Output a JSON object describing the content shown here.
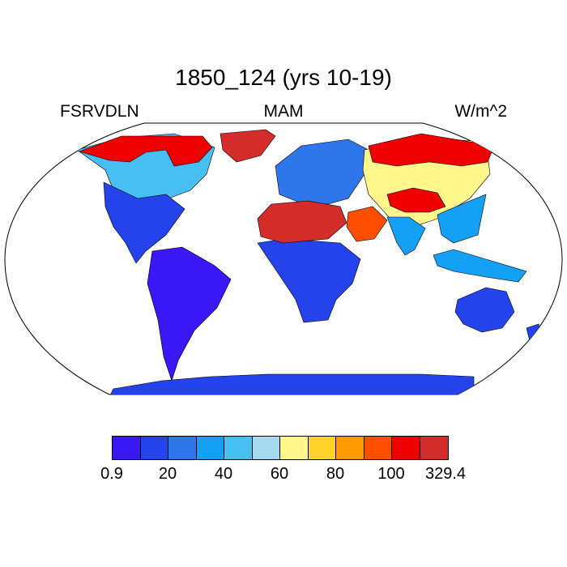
{
  "title": "1850_124 (yrs 10-19)",
  "left_label": "FSRVDLN",
  "center_label": "MAM",
  "right_label": "W/m^2",
  "colorbar": {
    "colors": [
      "#3a17f5",
      "#2443ea",
      "#2f76ea",
      "#14a0f5",
      "#48bff2",
      "#a6d8f0",
      "#fff68c",
      "#ffd22b",
      "#ff9a00",
      "#ff4e00",
      "#ee0000",
      "#d42b2b"
    ],
    "tick_labels": [
      "0.9",
      "20",
      "40",
      "60",
      "80",
      "100",
      "329.4"
    ]
  },
  "map_data": {
    "projection": "robinson",
    "variable": "FSRVDLN",
    "season": "MAM",
    "units": "W/m^2",
    "regions": [
      {
        "name": "north-america-arctic",
        "level": 10
      },
      {
        "name": "greenland",
        "level": 11
      },
      {
        "name": "north-america-boreal",
        "level": 4
      },
      {
        "name": "north-america-south",
        "level": 1
      },
      {
        "name": "south-america",
        "level": 0
      },
      {
        "name": "sahara",
        "level": 11
      },
      {
        "name": "arabia",
        "level": 9
      },
      {
        "name": "africa-south",
        "level": 1
      },
      {
        "name": "europe",
        "level": 2
      },
      {
        "name": "siberia",
        "level": 10
      },
      {
        "name": "central-asia",
        "level": 6
      },
      {
        "name": "tibet",
        "level": 10
      },
      {
        "name": "south-asia",
        "level": 3
      },
      {
        "name": "australia",
        "level": 1
      },
      {
        "name": "antarctica",
        "level": 1
      }
    ]
  }
}
